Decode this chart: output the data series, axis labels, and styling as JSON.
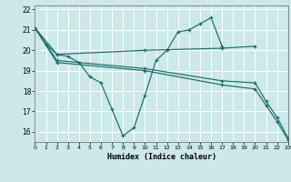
{
  "xlabel": "Humidex (Indice chaleur)",
  "xlim": [
    0,
    23
  ],
  "ylim": [
    15.5,
    22.2
  ],
  "xticks": [
    0,
    1,
    2,
    3,
    4,
    5,
    6,
    7,
    8,
    9,
    10,
    11,
    12,
    13,
    14,
    15,
    16,
    17,
    18,
    19,
    20,
    21,
    22,
    23
  ],
  "yticks": [
    16,
    17,
    18,
    19,
    20,
    21,
    22
  ],
  "bg_color": "#cce8e8",
  "grid_color": "#ffffff",
  "line_color": "#1a6b6b",
  "lines": [
    {
      "x": [
        0,
        1,
        2,
        3,
        4,
        5,
        6,
        7,
        8,
        9,
        10,
        11,
        12,
        13,
        14,
        15,
        16,
        17
      ],
      "y": [
        21.1,
        20.3,
        19.8,
        19.7,
        19.4,
        18.7,
        18.4,
        17.1,
        15.8,
        16.2,
        17.8,
        19.5,
        20.0,
        20.9,
        21.0,
        21.3,
        21.6,
        20.2
      ]
    },
    {
      "x": [
        0,
        2,
        10,
        17,
        20
      ],
      "y": [
        21.1,
        19.8,
        20.0,
        20.1,
        20.2
      ]
    },
    {
      "x": [
        0,
        2,
        10,
        17,
        20,
        21,
        22,
        23
      ],
      "y": [
        21.1,
        19.5,
        19.1,
        18.5,
        18.4,
        17.5,
        16.7,
        15.7
      ]
    },
    {
      "x": [
        0,
        2,
        10,
        17,
        20,
        21,
        22,
        23
      ],
      "y": [
        21.1,
        19.4,
        19.0,
        18.3,
        18.1,
        17.3,
        16.5,
        15.6
      ]
    }
  ]
}
